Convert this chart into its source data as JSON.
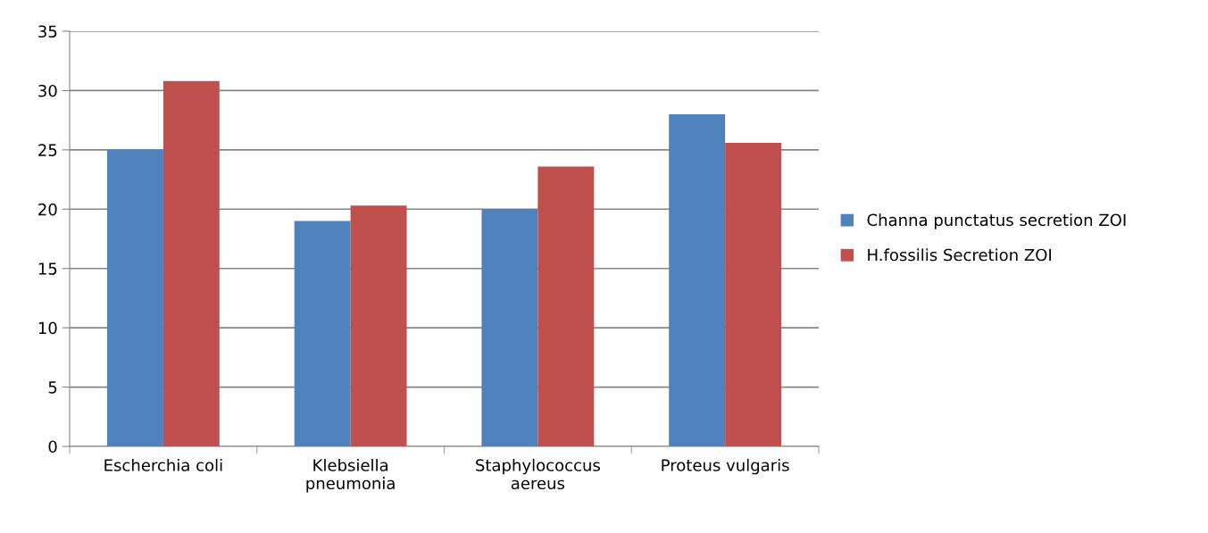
{
  "chart_data": {
    "type": "bar",
    "categories": [
      "Escherchia coli",
      "Klebsiella\npneumonia",
      "Staphylococcus\naereus",
      "Proteus vulgaris"
    ],
    "series": [
      {
        "name": "Channa punctatus secretion ZOI",
        "color": "#4f81bd",
        "values": [
          25,
          19,
          20,
          28
        ]
      },
      {
        "name": "H.fossilis Secretion ZOI",
        "color": "#c0504d",
        "values": [
          30.8,
          20.3,
          23.6,
          25.6
        ]
      }
    ],
    "ylim": [
      0,
      35
    ],
    "yticks": [
      0,
      5,
      10,
      15,
      20,
      25,
      30,
      35
    ],
    "grid": "y",
    "legend": "right"
  }
}
